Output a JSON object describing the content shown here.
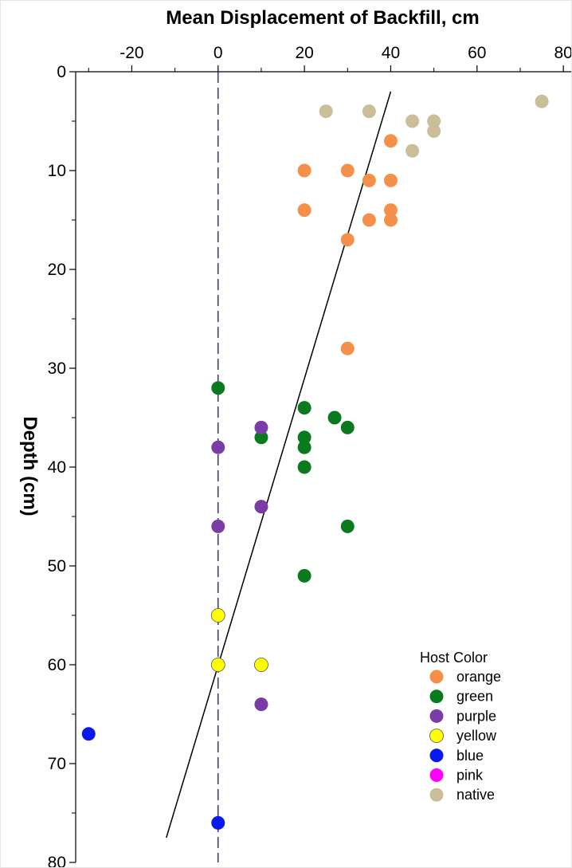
{
  "chart_data": {
    "type": "scatter",
    "title": "Mean Displacement of Backfill, cm",
    "xlabel": "Mean Displacement of Backfill, cm",
    "ylabel": "Depth (cm)",
    "x_axis_position": "top",
    "y_axis_inverted": true,
    "xlim": [
      -33,
      82
    ],
    "ylim": [
      0,
      80
    ],
    "x_ticks": [
      -20,
      0,
      20,
      40,
      60,
      80
    ],
    "y_ticks": [
      0,
      10,
      20,
      30,
      40,
      50,
      60,
      70,
      80
    ],
    "x_tick_labels": [
      "-20",
      "0",
      "20",
      "40",
      "60",
      "80"
    ],
    "y_tick_labels": [
      "0",
      "10",
      "20",
      "30",
      "40",
      "50",
      "60",
      "70",
      "80"
    ],
    "grid": false,
    "legend": {
      "title": "Host Color",
      "placement": "bottom-right"
    },
    "reference_line": {
      "axis": "x",
      "value": 0,
      "style": "dashed",
      "color": "#1a1a5e"
    },
    "fit_line": {
      "points": [
        [
          -12,
          77.5
        ],
        [
          40,
          2
        ]
      ],
      "color": "#000000"
    },
    "series": [
      {
        "name": "orange",
        "color": "#F5904A",
        "points": [
          [
            20,
            10
          ],
          [
            30,
            10
          ],
          [
            35,
            11
          ],
          [
            40,
            11
          ],
          [
            40,
            7
          ],
          [
            20,
            14
          ],
          [
            40,
            14
          ],
          [
            35,
            15
          ],
          [
            40,
            15
          ],
          [
            30,
            17
          ],
          [
            30,
            28
          ]
        ]
      },
      {
        "name": "green",
        "color": "#0A7A1E",
        "points": [
          [
            0,
            32
          ],
          [
            20,
            34
          ],
          [
            27,
            35
          ],
          [
            30,
            36
          ],
          [
            10,
            37
          ],
          [
            20,
            37
          ],
          [
            20,
            38
          ],
          [
            20,
            40
          ],
          [
            30,
            46
          ],
          [
            20,
            51
          ]
        ]
      },
      {
        "name": "purple",
        "color": "#7A3DA8",
        "points": [
          [
            10,
            36
          ],
          [
            0,
            38
          ],
          [
            10,
            44
          ],
          [
            0,
            46
          ],
          [
            10,
            64
          ]
        ]
      },
      {
        "name": "yellow",
        "color": "#FFFF00",
        "points": [
          [
            0,
            55
          ],
          [
            0,
            60
          ],
          [
            10,
            60
          ]
        ]
      },
      {
        "name": "blue",
        "color": "#0A18F0",
        "points": [
          [
            -30,
            67
          ],
          [
            0,
            76
          ]
        ]
      },
      {
        "name": "pink",
        "color": "#FF00FF",
        "points": []
      },
      {
        "name": "native",
        "color": "#C9BD9A",
        "points": [
          [
            25,
            4
          ],
          [
            35,
            4
          ],
          [
            45,
            5
          ],
          [
            50,
            5
          ],
          [
            50,
            6
          ],
          [
            45,
            8
          ],
          [
            75,
            3
          ]
        ]
      }
    ]
  }
}
